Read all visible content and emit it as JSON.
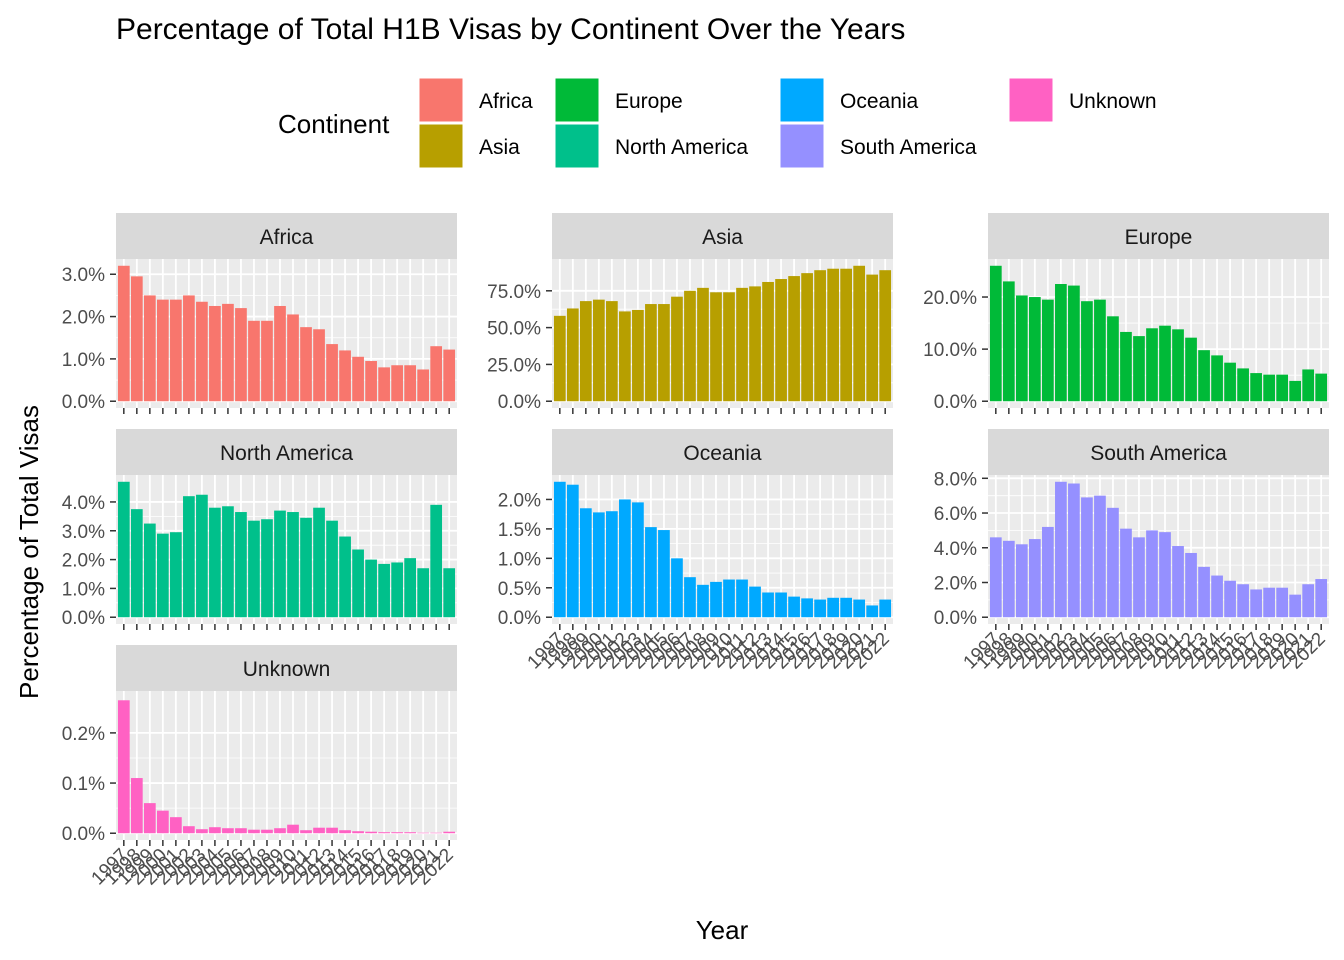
{
  "chart_data": {
    "type": "bar",
    "title": "Percentage of Total H1B Visas by Continent Over the Years",
    "xlabel": "Year",
    "ylabel": "Percentage of Total Visas",
    "legend": {
      "title": "Continent",
      "placement": "top",
      "entries": [
        "Africa",
        "Asia",
        "Europe",
        "North America",
        "Oceania",
        "South America",
        "Unknown"
      ]
    },
    "grid": true,
    "categories": [
      "1997",
      "1998",
      "1999",
      "2000",
      "2001",
      "2002",
      "2003",
      "2004",
      "2005",
      "2006",
      "2007",
      "2008",
      "2009",
      "2010",
      "2011",
      "2012",
      "2013",
      "2014",
      "2015",
      "2016",
      "2017",
      "2018",
      "2019",
      "2020",
      "2021",
      "2022"
    ],
    "series": [
      {
        "name": "Africa",
        "color": "#F8766D",
        "ylim": [
          0,
          3.2
        ],
        "yticks": [
          0,
          1,
          2,
          3
        ],
        "tick_labels": [
          "0.0%",
          "1.0%",
          "2.0%",
          "3.0%"
        ],
        "values": [
          3.2,
          2.95,
          2.5,
          2.4,
          2.4,
          2.5,
          2.35,
          2.25,
          2.3,
          2.2,
          1.9,
          1.9,
          2.25,
          2.05,
          1.75,
          1.7,
          1.35,
          1.2,
          1.05,
          0.95,
          0.8,
          0.85,
          0.85,
          0.75,
          1.3,
          1.22
        ]
      },
      {
        "name": "Asia",
        "color": "#B79F00",
        "ylim": [
          0,
          92
        ],
        "yticks": [
          0,
          25,
          50,
          75
        ],
        "tick_labels": [
          "0.0%",
          "25.0%",
          "50.0%",
          "75.0%"
        ],
        "values": [
          58,
          63,
          68,
          69,
          68,
          61,
          62,
          66,
          66,
          71,
          75,
          77,
          74,
          74,
          77,
          78,
          81,
          83,
          85,
          87,
          89,
          90,
          90,
          92,
          86,
          89
        ]
      },
      {
        "name": "Europe",
        "color": "#00BA38",
        "ylim": [
          0,
          26
        ],
        "yticks": [
          0,
          10,
          20
        ],
        "tick_labels": [
          "0.0%",
          "10.0%",
          "20.0%"
        ],
        "values": [
          26,
          23,
          20.3,
          20,
          19.5,
          22.5,
          22.2,
          19.2,
          19.5,
          16.3,
          13.3,
          12.5,
          14,
          14.5,
          13.8,
          12.2,
          9.8,
          8.8,
          7.4,
          6.3,
          5.4,
          5.1,
          5.1,
          3.9,
          6.1,
          5.3
        ]
      },
      {
        "name": "North America",
        "color": "#00C08B",
        "ylim": [
          0,
          4.7
        ],
        "yticks": [
          0,
          1,
          2,
          3,
          4
        ],
        "tick_labels": [
          "0.0%",
          "1.0%",
          "2.0%",
          "3.0%",
          "4.0%"
        ],
        "values": [
          4.7,
          3.75,
          3.25,
          2.9,
          2.95,
          4.2,
          4.25,
          3.8,
          3.85,
          3.65,
          3.35,
          3.4,
          3.7,
          3.65,
          3.45,
          3.8,
          3.35,
          2.8,
          2.35,
          2.0,
          1.85,
          1.9,
          2.05,
          1.7,
          3.9,
          1.7
        ]
      },
      {
        "name": "Oceania",
        "color": "#00A9FF",
        "ylim": [
          0,
          2.3
        ],
        "yticks": [
          0,
          0.5,
          1,
          1.5,
          2
        ],
        "tick_labels": [
          "0.0%",
          "0.5%",
          "1.0%",
          "1.5%",
          "2.0%"
        ],
        "values": [
          2.3,
          2.25,
          1.85,
          1.78,
          1.8,
          2.0,
          1.95,
          1.53,
          1.48,
          1.0,
          0.68,
          0.55,
          0.6,
          0.64,
          0.64,
          0.52,
          0.42,
          0.42,
          0.35,
          0.32,
          0.3,
          0.33,
          0.33,
          0.3,
          0.2,
          0.3
        ]
      },
      {
        "name": "South America",
        "color": "#9590FF",
        "ylim": [
          0,
          7.8
        ],
        "yticks": [
          0,
          2,
          4,
          6,
          8
        ],
        "tick_labels": [
          "0.0%",
          "2.0%",
          "4.0%",
          "6.0%",
          "8.0%"
        ],
        "values": [
          4.6,
          4.4,
          4.2,
          4.5,
          5.2,
          7.8,
          7.7,
          6.9,
          7.0,
          6.3,
          5.1,
          4.6,
          5.0,
          4.9,
          4.1,
          3.7,
          2.9,
          2.4,
          2.1,
          1.9,
          1.6,
          1.7,
          1.7,
          1.3,
          1.9,
          2.2
        ]
      },
      {
        "name": "Unknown",
        "color": "#FF61C3",
        "ylim": [
          0,
          0.27
        ],
        "yticks": [
          0,
          0.1,
          0.2
        ],
        "tick_labels": [
          "0.0%",
          "0.1%",
          "0.2%"
        ],
        "values": [
          0.265,
          0.11,
          0.06,
          0.045,
          0.032,
          0.014,
          0.008,
          0.012,
          0.01,
          0.01,
          0.007,
          0.007,
          0.01,
          0.017,
          0.006,
          0.011,
          0.011,
          0.006,
          0.004,
          0.003,
          0.002,
          0.002,
          0.002,
          0.001,
          0.001,
          0.003
        ]
      }
    ]
  }
}
